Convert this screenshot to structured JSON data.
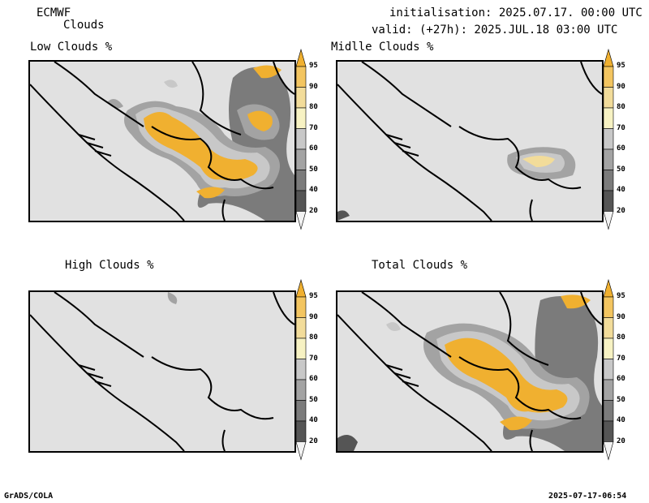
{
  "header": {
    "model": "ECMWF",
    "subtitle": "Clouds",
    "initialisation": "initialisation: 2025.07.17. 00:00 UTC",
    "valid": "valid: (+27h): 2025.JUL.18 03:00 UTC"
  },
  "panels": [
    {
      "title": "Low Clouds %"
    },
    {
      "title": "Midlle Clouds %"
    },
    {
      "title": "High Clouds %"
    },
    {
      "title": "Total Clouds %"
    }
  ],
  "colorbar": {
    "levels": [
      "95",
      "90",
      "80",
      "70",
      "60",
      "50",
      "40",
      "20"
    ],
    "colors": [
      "#f0b030",
      "#f3c560",
      "#f2dc9a",
      "#f7f2c3",
      "#c8c8c8",
      "#a3a3a3",
      "#7b7b7b",
      "#555555",
      "#f3f3f3"
    ],
    "top_color": "#f0b030",
    "bottom_color": "#f3f3f3"
  },
  "footer": {
    "left": "GrADS/COLA",
    "right": "2025-07-17-06:54"
  }
}
